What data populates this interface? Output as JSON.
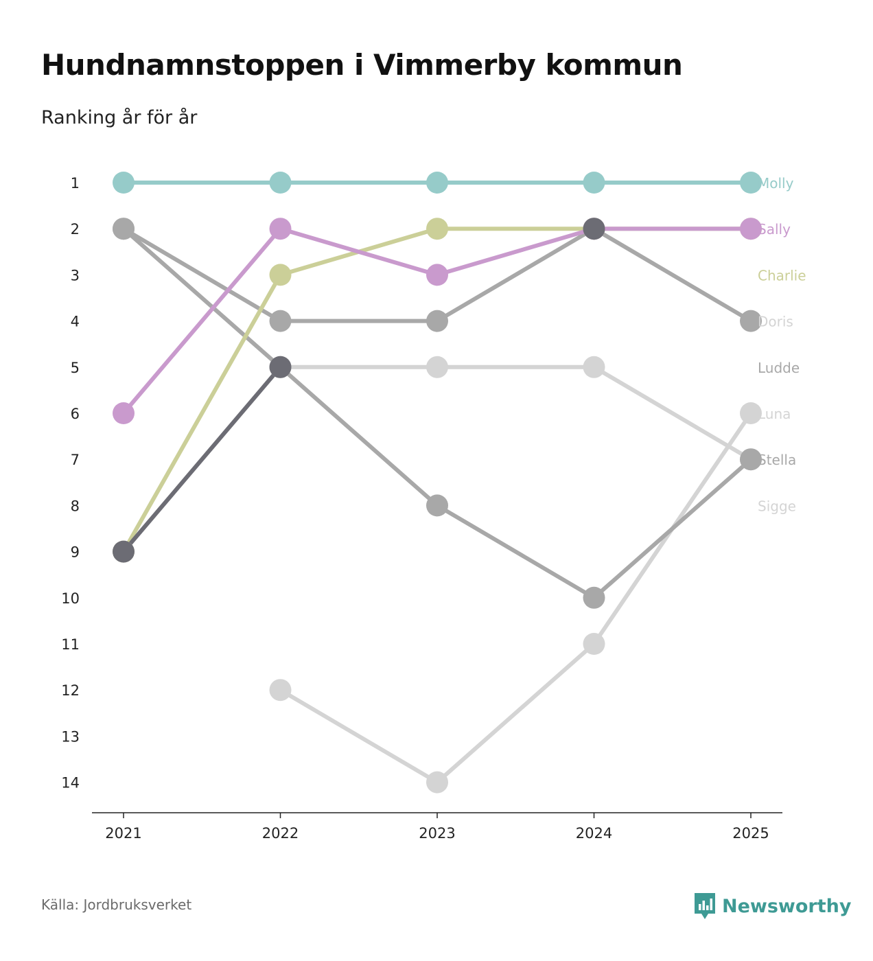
{
  "title": "Hundnamnstoppen i Vimmerby kommun",
  "subtitle": "Ranking år för år",
  "source": "Källa: Jordbruksverket",
  "brand": {
    "name": "Newsworthy",
    "logo_icon": "newsworthy-logo-icon",
    "color": "#3e9a94"
  },
  "chart_data": {
    "type": "line",
    "title": "Hundnamnstoppen i Vimmerby kommun",
    "subtitle": "Ranking år för år",
    "xlabel": "",
    "ylabel": "",
    "x": [
      "2021",
      "2022",
      "2023",
      "2024",
      "2025"
    ],
    "y_ticks": [
      "1",
      "2",
      "3",
      "4",
      "5",
      "6",
      "7",
      "8",
      "9",
      "10",
      "11",
      "12",
      "13",
      "14"
    ],
    "ylim": [
      1,
      14
    ],
    "y_inverted": true,
    "grid": false,
    "legend": "right (direct labels)",
    "series": [
      {
        "name": "Luna",
        "color": "#d4d4d4",
        "values": [
          null,
          12,
          14,
          11,
          6
        ]
      },
      {
        "name": "Sigge",
        "color": "#d4d4d4",
        "values": [
          9,
          5,
          5,
          5,
          7
        ]
      },
      {
        "name": "Stella",
        "color": "#a8a8a8",
        "values": [
          2,
          4,
          4,
          2,
          4
        ]
      },
      {
        "name": "Ludde",
        "color": "#a8a8a8",
        "values": [
          2,
          5,
          8,
          10,
          7
        ]
      },
      {
        "name": "Charlie",
        "color": "#cbcf98",
        "values": [
          9,
          3,
          2,
          2,
          2
        ]
      },
      {
        "name": "Sally",
        "color": "#c99acd",
        "values": [
          6,
          2,
          3,
          2,
          2
        ]
      },
      {
        "name": "Doris",
        "color": "#6c6c74",
        "values": [
          9,
          5,
          null,
          2,
          null
        ]
      },
      {
        "name": "Molly",
        "color": "#96cbc9",
        "values": [
          1,
          1,
          1,
          1,
          1
        ]
      }
    ],
    "end_labels": [
      {
        "name": "Molly",
        "color": "#96cbc9"
      },
      {
        "name": "Sally",
        "color": "#c99acd"
      },
      {
        "name": "Charlie",
        "color": "#cbcf98"
      },
      {
        "name": "Doris",
        "color": "#d4d4d4"
      },
      {
        "name": "Ludde",
        "color": "#a8a8a8"
      },
      {
        "name": "Luna",
        "color": "#d4d4d4"
      },
      {
        "name": "Stella",
        "color": "#a8a8a8"
      },
      {
        "name": "Sigge",
        "color": "#d4d4d4"
      }
    ]
  }
}
